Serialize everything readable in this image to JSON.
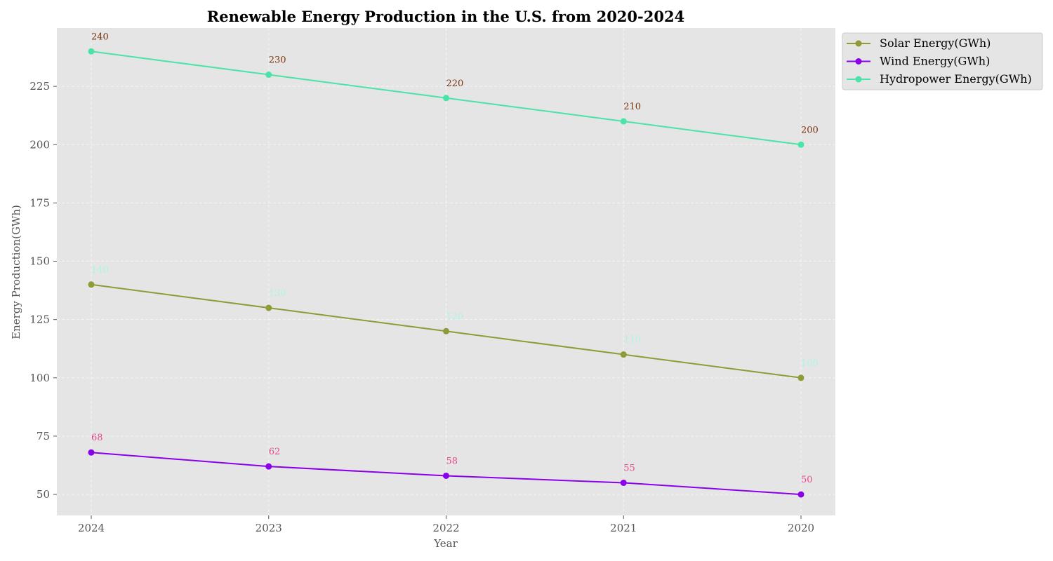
{
  "chart_data": {
    "type": "line",
    "title": "Renewable Energy Production in the U.S. from 2020-2024",
    "xlabel": "Year",
    "ylabel": "Energy Production(GWh)",
    "categories": [
      "2024",
      "2023",
      "2022",
      "2021",
      "2020"
    ],
    "ylim": [
      41,
      250
    ],
    "yticks": [
      50,
      75,
      100,
      125,
      150,
      175,
      200,
      225
    ],
    "grid": true,
    "legend_position": "outside top-right",
    "series": [
      {
        "name": "Solar Energy(GWh)",
        "values": [
          140,
          130,
          120,
          110,
          100
        ],
        "color": "#8f9b36",
        "label_color": "#aef4e6"
      },
      {
        "name": "Wind Energy(GWh)",
        "values": [
          68,
          62,
          58,
          55,
          50
        ],
        "color": "#8a00e8",
        "label_color": "#e8488c"
      },
      {
        "name": "Hydropower Energy(GWh)",
        "values": [
          240,
          230,
          220,
          210,
          200
        ],
        "color": "#4ae3a8",
        "label_color": "#7a3410"
      }
    ]
  }
}
